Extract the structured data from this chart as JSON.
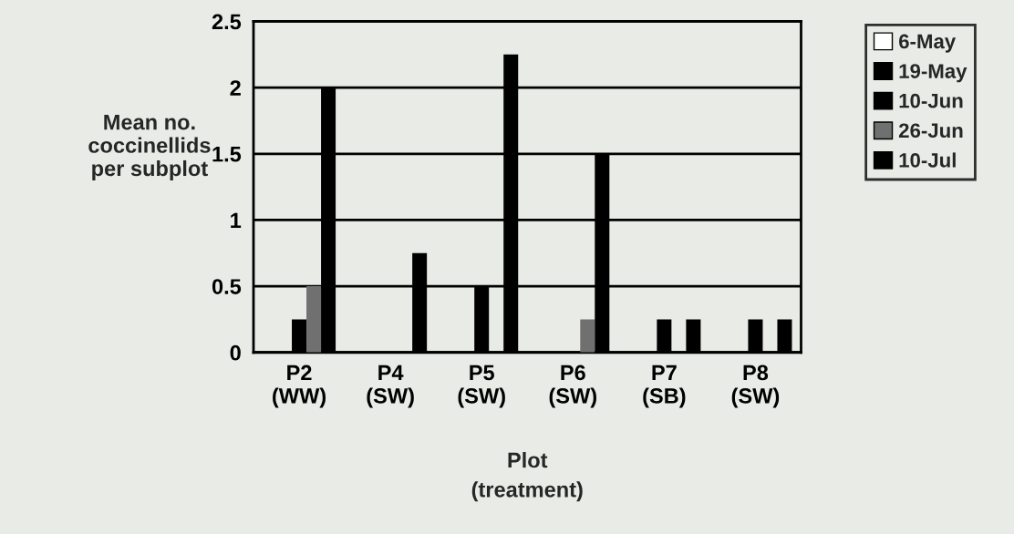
{
  "chart_data": {
    "type": "bar",
    "categories": [
      "P2\n(WW)",
      "P4\n(SW)",
      "P5\n(SW)",
      "P6\n(SW)",
      "P7\n(SB)",
      "P8\n(SW)"
    ],
    "series": [
      {
        "name": "6-May",
        "color": "#ffffff",
        "values": [
          0,
          0,
          0,
          0,
          0,
          0
        ]
      },
      {
        "name": "19-May",
        "color": "#000000",
        "values": [
          0,
          0,
          0,
          0,
          0,
          0
        ]
      },
      {
        "name": "10-Jun",
        "color": "#000000",
        "values": [
          0.25,
          0,
          0.5,
          0,
          0.25,
          0.25
        ]
      },
      {
        "name": "26-Jun",
        "color": "#707070",
        "values": [
          0.5,
          0,
          0,
          0.25,
          0,
          0
        ]
      },
      {
        "name": "10-Jul",
        "color": "#000000",
        "values": [
          2.0,
          0.75,
          2.25,
          1.5,
          0.25,
          0.25
        ]
      }
    ],
    "xlabel": "Plot\n(treatment)",
    "ylabel": "Mean no.\ncoccinellids\nper subplot",
    "ylim": [
      0,
      2.5
    ],
    "yticks": [
      0,
      0.5,
      1,
      1.5,
      2,
      2.5
    ],
    "grid": "y",
    "legend": "top right"
  }
}
